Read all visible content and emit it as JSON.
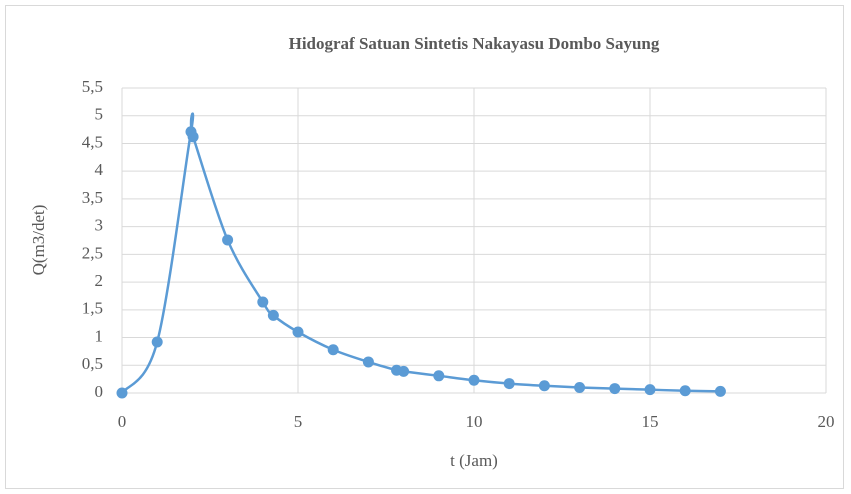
{
  "chart_data": {
    "type": "scatter_smooth",
    "title": "Hidograf Satuan Sintetis Nakayasu Dombo Sayung",
    "x_label": "t (Jam)",
    "y_label": "Q(m3/det)",
    "series": [
      {
        "color": "#5b9bd5",
        "x": [
          0,
          1,
          1.96,
          2.02,
          3,
          4,
          4.3,
          5,
          6,
          7,
          7.8,
          8,
          9,
          10,
          11,
          12,
          13,
          14,
          15,
          16,
          17
        ],
        "values": [
          0,
          0.92,
          4.71,
          4.62,
          2.76,
          1.64,
          1.4,
          1.1,
          0.78,
          0.56,
          0.41,
          0.39,
          0.31,
          0.23,
          0.17,
          0.13,
          0.1,
          0.08,
          0.06,
          0.04,
          0.03
        ]
      }
    ],
    "xlim": [
      0,
      20
    ],
    "xticks": [
      0,
      5,
      10,
      15,
      20
    ],
    "ylim": [
      0,
      5.5
    ],
    "yticks": [
      0,
      {
        "value": 0.5,
        "label": "0,5"
      },
      1,
      {
        "value": 1.5,
        "label": "1,5"
      },
      2,
      {
        "value": 2.5,
        "label": "2,5"
      },
      3,
      {
        "value": 3.5,
        "label": "3,5"
      },
      4,
      {
        "value": 4.5,
        "label": "4,5"
      },
      5,
      {
        "value": 5.5,
        "label": "5,5"
      }
    ],
    "grid": true
  }
}
